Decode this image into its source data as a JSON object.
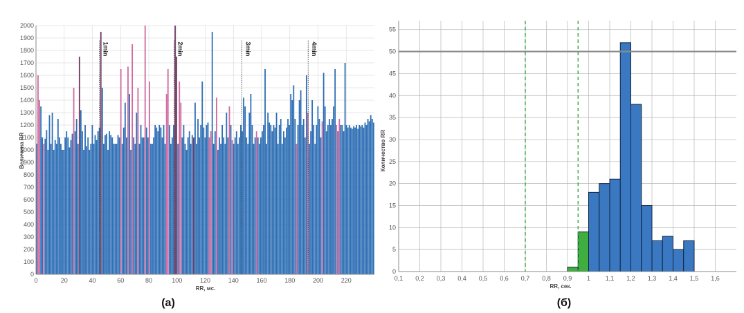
{
  "colors": {
    "bar_blue": "#2e6fb5",
    "bar_pink": "#d06aa0",
    "bar_dark": "#6e3960",
    "hist_blue": "#3a78c2",
    "hist_green": "#3fae3f",
    "grid": "#b5b5b5",
    "dashed": "#2e9d3a",
    "refline": "#8a8a8a"
  },
  "chart_data": [
    {
      "type": "bar",
      "caption": "(а)",
      "xlabel": "RR, мс.",
      "ylabel": "Величина RR",
      "xlim": [
        0,
        240
      ],
      "ylim": [
        0,
        2000
      ],
      "xticks": [
        0,
        20,
        40,
        60,
        80,
        100,
        120,
        140,
        160,
        180,
        200,
        220
      ],
      "yticks": [
        0,
        100,
        200,
        300,
        400,
        500,
        600,
        700,
        800,
        900,
        1000,
        1100,
        1200,
        1300,
        1400,
        1500,
        1600,
        1700,
        1800,
        1900,
        2000
      ],
      "annotations": [
        {
          "x": 45,
          "text": "1min"
        },
        {
          "x": 98,
          "text": "2min"
        },
        {
          "x": 146,
          "text": "3min"
        },
        {
          "x": 193,
          "text": "4min"
        }
      ],
      "values": [
        1050,
        1600,
        1400,
        1350,
        1100,
        1050,
        1090,
        1160,
        1000,
        1280,
        1050,
        1300,
        1000,
        1080,
        1050,
        1250,
        1100,
        1050,
        1000,
        1000,
        1100,
        1150,
        1100,
        1020,
        1080,
        1130,
        1500,
        1150,
        1250,
        1050,
        1750,
        1320,
        1150,
        1000,
        1200,
        1030,
        1100,
        1000,
        1050,
        1200,
        1050,
        1120,
        1080,
        1150,
        1180,
        1950,
        1500,
        1050,
        1120,
        1130,
        1000,
        1150,
        1120,
        1100,
        1050,
        1050,
        1050,
        1120,
        1100,
        1650,
        1050,
        1180,
        1380,
        1100,
        1670,
        1450,
        1000,
        1850,
        1100,
        1050,
        1300,
        1500,
        1050,
        1200,
        1100,
        1100,
        2000,
        1180,
        1100,
        1550,
        1050,
        1050,
        1100,
        1200,
        1180,
        1150,
        1200,
        1180,
        1100,
        1200,
        1050,
        1450,
        1650,
        1200,
        1050,
        1100,
        1200,
        2000,
        1750,
        1050,
        1550,
        1380,
        1100,
        1200,
        1050,
        1000,
        1100,
        1150,
        1050,
        1120,
        1100,
        1380,
        1050,
        1250,
        1100,
        1200,
        1550,
        1180,
        1100,
        1200,
        1220,
        1100,
        1150,
        1950,
        1050,
        1150,
        1420,
        1000,
        1100,
        1050,
        1200,
        1100,
        1050,
        1300,
        1100,
        1350,
        1200,
        1080,
        1050,
        1100,
        1150,
        1050,
        1100,
        1200,
        1150,
        1420,
        1350,
        1100,
        1050,
        1300,
        1450,
        1200,
        1050,
        1100,
        1150,
        1100,
        1050,
        1100,
        1150,
        1200,
        1650,
        1050,
        1300,
        1220,
        1200,
        1150,
        1200,
        1180,
        1300,
        1050,
        1200,
        1250,
        1050,
        1150,
        1100,
        1180,
        1250,
        1200,
        1450,
        1400,
        1520,
        1250,
        1050,
        1200,
        1400,
        1480,
        1200,
        1250,
        1100,
        1600,
        1300,
        1050,
        1150,
        1400,
        1200,
        1050,
        1200,
        1350,
        1250,
        1100,
        1230,
        1620,
        1350,
        1150,
        1200,
        1250,
        1200,
        1250,
        1350,
        1650,
        1200,
        1150,
        1250,
        1200,
        1200,
        1150,
        1700,
        1200,
        1180,
        1200,
        1180,
        1170,
        1190,
        1180,
        1200,
        1170,
        1200,
        1190,
        1200,
        1180,
        1220,
        1200,
        1250,
        1230,
        1280,
        1250,
        1220
      ],
      "highlight_indices": [
        1,
        2,
        5,
        26,
        45,
        59,
        64,
        67,
        71,
        76,
        79,
        91,
        92,
        97,
        100,
        101,
        121,
        122,
        126,
        135,
        137,
        154,
        182,
        190,
        200,
        210,
        212
      ],
      "dark_indices": [
        30,
        45,
        97,
        98,
        110
      ]
    },
    {
      "type": "bar",
      "caption": "(б)",
      "xlabel": "RR, сек.",
      "ylabel": "Количество RR",
      "xlim": [
        0.1,
        1.7
      ],
      "ylim": [
        0,
        57
      ],
      "xticks": [
        "0,1",
        "0,2",
        "0,3",
        "0,4",
        "0,5",
        "0,6",
        "0,7",
        "0,8",
        "0,9",
        "1",
        "1,1",
        "1,2",
        "1,3",
        "1,4",
        "1,5",
        "1,6"
      ],
      "yticks": [
        0,
        5,
        10,
        15,
        20,
        25,
        30,
        35,
        40,
        45,
        50,
        55
      ],
      "reference_line_y": 50,
      "dashed_lines_x": [
        0.7,
        0.95
      ],
      "bins": [
        {
          "x0": 0.9,
          "x1": 0.95,
          "value": 1,
          "color": "green"
        },
        {
          "x0": 0.95,
          "x1": 1.0,
          "value": 9,
          "color": "green"
        },
        {
          "x0": 1.0,
          "x1": 1.05,
          "value": 18,
          "color": "blue"
        },
        {
          "x0": 1.05,
          "x1": 1.1,
          "value": 20,
          "color": "blue"
        },
        {
          "x0": 1.1,
          "x1": 1.15,
          "value": 21,
          "color": "blue"
        },
        {
          "x0": 1.15,
          "x1": 1.2,
          "value": 52,
          "color": "blue"
        },
        {
          "x0": 1.2,
          "x1": 1.25,
          "value": 38,
          "color": "blue"
        },
        {
          "x0": 1.25,
          "x1": 1.3,
          "value": 15,
          "color": "blue"
        },
        {
          "x0": 1.3,
          "x1": 1.35,
          "value": 7,
          "color": "blue"
        },
        {
          "x0": 1.35,
          "x1": 1.4,
          "value": 8,
          "color": "blue"
        },
        {
          "x0": 1.4,
          "x1": 1.45,
          "value": 5,
          "color": "blue"
        },
        {
          "x0": 1.45,
          "x1": 1.5,
          "value": 7,
          "color": "blue"
        }
      ]
    }
  ]
}
